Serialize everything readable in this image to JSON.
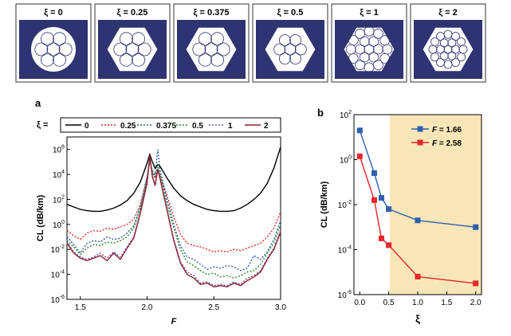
{
  "panels": [
    {
      "label": "ξ = 0",
      "xi": 0
    },
    {
      "label": "ξ = 0.25",
      "xi": 0.25
    },
    {
      "label": "ξ = 0.375",
      "xi": 0.375
    },
    {
      "label": "ξ = 0.5",
      "xi": 0.5
    },
    {
      "label": "ξ = 1",
      "xi": 1
    },
    {
      "label": "ξ = 2",
      "xi": 2
    }
  ],
  "colors": {
    "cladding": "#2e3371",
    "core": "#ffffff",
    "shade": "#f7e6b8",
    "blue_series": "#2d5fae",
    "red_series": "#e8262b"
  },
  "chart_data": [
    {
      "panel_label": "a",
      "type": "line",
      "xlabel": "F",
      "ylabel": "CL (dB/km)",
      "xlim": [
        1.4,
        3.0
      ],
      "ylim_log10": [
        -6,
        7
      ],
      "yscale": "log",
      "x_ticks": [
        "1.5",
        "2.0",
        "2.5",
        "3.0"
      ],
      "x_tick_values": [
        1.5,
        2.0,
        2.5,
        3.0
      ],
      "y_ticks": [
        {
          "base": "10",
          "exp": "-6",
          "v": -6
        },
        {
          "base": "10",
          "exp": "-4",
          "v": -4
        },
        {
          "base": "10",
          "exp": "-2",
          "v": -2
        },
        {
          "base": "10",
          "exp": "0",
          "v": 0
        },
        {
          "base": "10",
          "exp": "2",
          "v": 2
        },
        {
          "base": "10",
          "exp": "4",
          "v": 4
        },
        {
          "base": "10",
          "exp": "6",
          "v": 6
        }
      ],
      "legend_title": "ξ =",
      "legend_placement": "top",
      "x": [
        1.4,
        1.45,
        1.5,
        1.55,
        1.6,
        1.65,
        1.7,
        1.75,
        1.8,
        1.85,
        1.9,
        1.95,
        2.0,
        2.02,
        2.04,
        2.06,
        2.08,
        2.1,
        2.15,
        2.2,
        2.25,
        2.3,
        2.35,
        2.4,
        2.45,
        2.5,
        2.55,
        2.6,
        2.65,
        2.7,
        2.75,
        2.8,
        2.85,
        2.9,
        2.95,
        3.0
      ],
      "series": [
        {
          "name": "0",
          "color": "#000000",
          "dash": "solid",
          "values_log10": [
            1.6,
            1.4,
            1.2,
            1.1,
            1.05,
            1.05,
            1.15,
            1.3,
            1.55,
            1.9,
            2.5,
            3.4,
            4.9,
            5.6,
            5.0,
            4.5,
            4.8,
            4.6,
            3.7,
            2.9,
            2.3,
            1.9,
            1.6,
            1.4,
            1.2,
            1.1,
            1.05,
            1.05,
            1.1,
            1.3,
            1.6,
            2.0,
            2.5,
            3.3,
            4.5,
            6.2
          ]
        },
        {
          "name": "0.25",
          "color": "#e8262b",
          "dash": "dot",
          "values_log10": [
            -0.5,
            -0.9,
            -1.2,
            -0.7,
            -0.5,
            -0.55,
            -0.3,
            -0.4,
            -0.2,
            0.0,
            0.4,
            1.6,
            3.8,
            5.1,
            4.2,
            3.7,
            4.3,
            3.8,
            2.3,
            0.6,
            -0.8,
            -1.5,
            -1.7,
            -1.8,
            -2.0,
            -2.2,
            -2.1,
            -2.2,
            -2.0,
            -2.1,
            -1.9,
            -1.7,
            -1.5,
            -1.0,
            -0.3,
            1.0
          ]
        },
        {
          "name": "0.375",
          "color": "#2d5fae",
          "dash": "dot",
          "values_log10": [
            -1.0,
            -1.6,
            -2.3,
            -1.5,
            -1.3,
            -1.4,
            -1.0,
            -1.2,
            -1.1,
            -0.7,
            -0.1,
            1.4,
            3.8,
            5.0,
            4.3,
            4.0,
            6.0,
            4.2,
            2.0,
            0.0,
            -1.7,
            -2.6,
            -2.8,
            -3.2,
            -3.6,
            -3.4,
            -3.5,
            -3.3,
            -3.4,
            -3.7,
            -3.5,
            -2.5,
            -2.8,
            -2.2,
            -1.2,
            0.3
          ]
        },
        {
          "name": "0.5",
          "color": "#2a8a2a",
          "dash": "dot",
          "values_log10": [
            -1.3,
            -1.8,
            -2.4,
            -1.9,
            -1.6,
            -1.7,
            -1.4,
            -1.5,
            -1.3,
            -1.0,
            -0.3,
            1.3,
            3.6,
            5.2,
            4.1,
            3.8,
            4.8,
            3.9,
            1.6,
            -0.3,
            -2.0,
            -3.0,
            -3.3,
            -3.7,
            -4.0,
            -3.9,
            -4.2,
            -4.1,
            -4.3,
            -4.1,
            -3.8,
            -3.7,
            -3.2,
            -2.3,
            -1.5,
            0.0
          ]
        },
        {
          "name": "1",
          "color": "#6b4ea0",
          "dash": "dot",
          "values_log10": [
            -1.4,
            -2.2,
            -2.6,
            -2.8,
            -2.6,
            -2.3,
            -2.7,
            -2.2,
            -2.6,
            -1.8,
            -1.0,
            1.0,
            3.4,
            5.3,
            3.9,
            3.2,
            4.5,
            3.6,
            1.2,
            -1.2,
            -3.0,
            -3.8,
            -4.1,
            -4.7,
            -4.6,
            -4.9,
            -4.8,
            -4.9,
            -4.6,
            -4.8,
            -4.3,
            -4.1,
            -3.7,
            -2.7,
            -1.9,
            -0.5
          ]
        },
        {
          "name": "2",
          "color": "#8b2030",
          "dash": "solid",
          "values_log10": [
            -1.5,
            -2.3,
            -2.7,
            -2.9,
            -2.7,
            -2.5,
            -2.9,
            -2.3,
            -2.8,
            -1.9,
            -1.1,
            0.9,
            3.3,
            5.5,
            3.8,
            3.1,
            4.4,
            3.5,
            1.1,
            -1.3,
            -3.1,
            -4.0,
            -4.3,
            -4.8,
            -4.7,
            -5.0,
            -4.9,
            -5.0,
            -4.7,
            -4.9,
            -4.5,
            -4.2,
            -3.8,
            -2.8,
            -2.0,
            -0.6
          ]
        }
      ]
    },
    {
      "panel_label": "b",
      "type": "scatter",
      "xlabel": "ξ",
      "ylabel": "CL (dB/km)",
      "xlim": [
        -0.1,
        2.1
      ],
      "ylim_log10": [
        -6,
        2
      ],
      "yscale": "log",
      "x_ticks": [
        "0.0",
        "0.5",
        "1.0",
        "1.5",
        "2.0"
      ],
      "x_tick_values": [
        0.0,
        0.5,
        1.0,
        1.5,
        2.0
      ],
      "y_ticks": [
        {
          "base": "10",
          "exp": "-6",
          "v": -6
        },
        {
          "base": "10",
          "exp": "-4",
          "v": -4
        },
        {
          "base": "10",
          "exp": "-2",
          "v": -2
        },
        {
          "base": "10",
          "exp": "0",
          "v": 0
        },
        {
          "base": "10",
          "exp": "2",
          "v": 2
        }
      ],
      "shaded_region_x": [
        0.52,
        2.1
      ],
      "legend_placement": "top-right",
      "x": [
        0,
        0.25,
        0.375,
        0.5,
        1.0,
        2.0
      ],
      "series": [
        {
          "name": "F = 1.66",
          "legend_var": "F",
          "legend_val": " = 1.66",
          "color": "#2d5fae",
          "values_log10": [
            1.3,
            -0.6,
            -1.7,
            -2.2,
            -2.7,
            -3.0
          ]
        },
        {
          "name": "F = 2.58",
          "legend_var": "F",
          "legend_val": " = 2.58",
          "color": "#e8262b",
          "values_log10": [
            0.15,
            -1.8,
            -3.5,
            -3.8,
            -5.2,
            -5.5
          ]
        }
      ]
    }
  ]
}
